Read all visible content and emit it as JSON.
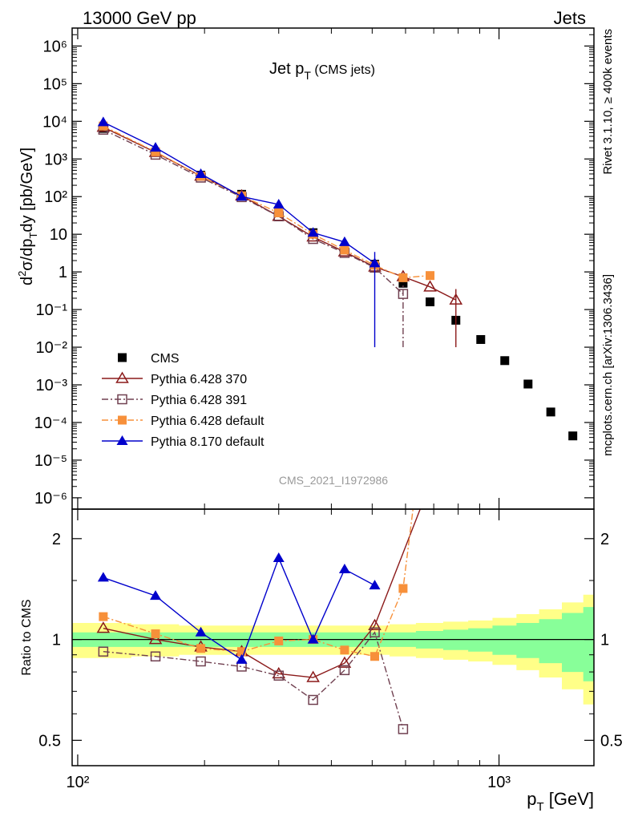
{
  "header": {
    "left": "13000 GeV pp",
    "right": "Jets",
    "rivet": "Rivet 3.1.10, ≥ 400k events",
    "mcplots": "mcplots.cern.ch [arXiv:1306.3436]",
    "analysis": "CMS_2021_I1972986"
  },
  "chart_data": [
    {
      "type": "scatter",
      "title": "Jet pT (CMS jets)",
      "xlabel": "pT [GeV]",
      "ylabel": "d²σ/dpTdy [pb/GeV]",
      "xscale": "log",
      "yscale": "log",
      "xlim": [
        97,
        1680
      ],
      "ylim": [
        5e-07,
        3000000.0
      ],
      "legend_position": "lower-left",
      "grid": false,
      "x_tick_labels": [
        "10²",
        "10³"
      ],
      "y_tick_labels": [
        "10⁻⁶",
        "10⁻⁵",
        "10⁻⁴",
        "10⁻³",
        "10⁻²",
        "10⁻¹",
        "1",
        "10",
        "10²",
        "10³",
        "10⁴",
        "10⁵",
        "10⁶"
      ],
      "series": [
        {
          "name": "CMS",
          "color": "#000000",
          "marker": "square-filled",
          "x": [
            115,
            153,
            196,
            245,
            300,
            362,
            430,
            507,
            592,
            686,
            790,
            905,
            1032,
            1172,
            1327,
            1497
          ],
          "y": [
            6500,
            1500,
            370,
            115,
            38,
            11,
            4,
            1.6,
            0.5,
            0.16,
            0.052,
            0.016,
            0.0044,
            0.00105,
            0.00019,
            4.4e-05
          ]
        },
        {
          "name": "Pythia 6.428 370",
          "color": "#8b1a1a",
          "marker": "triangle-open",
          "line": "solid",
          "x": [
            115,
            153,
            196,
            245,
            300,
            362,
            430,
            507,
            592,
            686,
            790
          ],
          "y": [
            7000,
            1500,
            350,
            105,
            30,
            8.5,
            3.4,
            1.35,
            0.75,
            0.4,
            0.18
          ],
          "yerr": [
            0,
            0,
            0,
            0,
            0,
            0,
            0,
            0,
            0,
            0,
            0.17
          ]
        },
        {
          "name": "Pythia 6.428 391",
          "color": "#704050",
          "marker": "square-open",
          "line": "dashdot",
          "x": [
            115,
            153,
            196,
            245,
            300,
            362,
            430,
            507,
            592
          ],
          "y": [
            6000,
            1300,
            320,
            97,
            30,
            7.5,
            3.2,
            1.3,
            0.26
          ],
          "yerr": [
            0,
            0,
            0,
            0,
            0,
            0,
            0,
            0,
            0.25
          ]
        },
        {
          "name": "Pythia 6.428 default",
          "color": "#f7903a",
          "marker": "square-filled",
          "line": "dashdot",
          "x": [
            115,
            153,
            196,
            245,
            300,
            362,
            430,
            507,
            592,
            686
          ],
          "y": [
            7500,
            1550,
            350,
            105,
            37,
            10,
            3.8,
            1.5,
            0.7,
            0.8
          ]
        },
        {
          "name": "Pythia 8.170 default",
          "color": "#0000cc",
          "marker": "triangle-filled",
          "line": "solid",
          "x": [
            115,
            153,
            196,
            245,
            300,
            362,
            430,
            507
          ],
          "y": [
            9500,
            2000,
            400,
            100,
            62,
            11,
            6.2,
            1.7
          ],
          "yerr": [
            0,
            0,
            0,
            0,
            0,
            0,
            0,
            1.69
          ]
        }
      ]
    },
    {
      "type": "line",
      "ylabel": "Ratio to CMS",
      "xscale": "log",
      "yscale": "log",
      "xlim": [
        97,
        1680
      ],
      "ylim": [
        0.42,
        2.45
      ],
      "y_tick_labels": [
        "0.5",
        "1",
        "2"
      ],
      "bands": {
        "x_edges": [
          97,
          134,
          174,
          220,
          270,
          330,
          395,
          465,
          550,
          635,
          737,
          845,
          965,
          1100,
          1245,
          1410,
          1585,
          1680
        ],
        "outer_halfwidth": [
          0.12,
          0.11,
          0.1,
          0.1,
          0.1,
          0.1,
          0.1,
          0.1,
          0.11,
          0.12,
          0.13,
          0.14,
          0.16,
          0.19,
          0.23,
          0.29,
          0.36,
          0.36
        ],
        "inner_halfwidth": [
          0.05,
          0.05,
          0.05,
          0.05,
          0.05,
          0.05,
          0.05,
          0.05,
          0.05,
          0.06,
          0.07,
          0.08,
          0.1,
          0.12,
          0.15,
          0.2,
          0.25,
          0.25
        ],
        "outer_color": "#ffff88",
        "inner_color": "#88ff99"
      },
      "series": [
        {
          "name": "Pythia 6.428 370",
          "color": "#8b1a1a",
          "x": [
            115,
            153,
            196,
            245,
            300,
            362,
            430,
            507,
            650
          ],
          "y": [
            1.08,
            1.0,
            0.95,
            0.92,
            0.79,
            0.77,
            0.85,
            1.1,
            2.45
          ]
        },
        {
          "name": "Pythia 6.428 391",
          "color": "#704050",
          "x": [
            115,
            153,
            196,
            245,
            300,
            362,
            430,
            507,
            592
          ],
          "y": [
            0.92,
            0.89,
            0.86,
            0.83,
            0.78,
            0.66,
            0.81,
            1.05,
            0.54
          ]
        },
        {
          "name": "Pythia 6.428 default",
          "color": "#f7903a",
          "x": [
            115,
            153,
            196,
            245,
            300,
            362,
            430,
            507,
            592,
            625
          ],
          "y": [
            1.17,
            1.04,
            0.94,
            0.92,
            0.99,
            1.0,
            0.93,
            0.89,
            1.42,
            2.45
          ]
        },
        {
          "name": "Pythia 8.170 default",
          "color": "#0000cc",
          "x": [
            115,
            153,
            196,
            245,
            300,
            362,
            430,
            507
          ],
          "y": [
            1.53,
            1.35,
            1.05,
            0.87,
            1.75,
            1.0,
            1.62,
            1.45
          ]
        }
      ]
    }
  ]
}
